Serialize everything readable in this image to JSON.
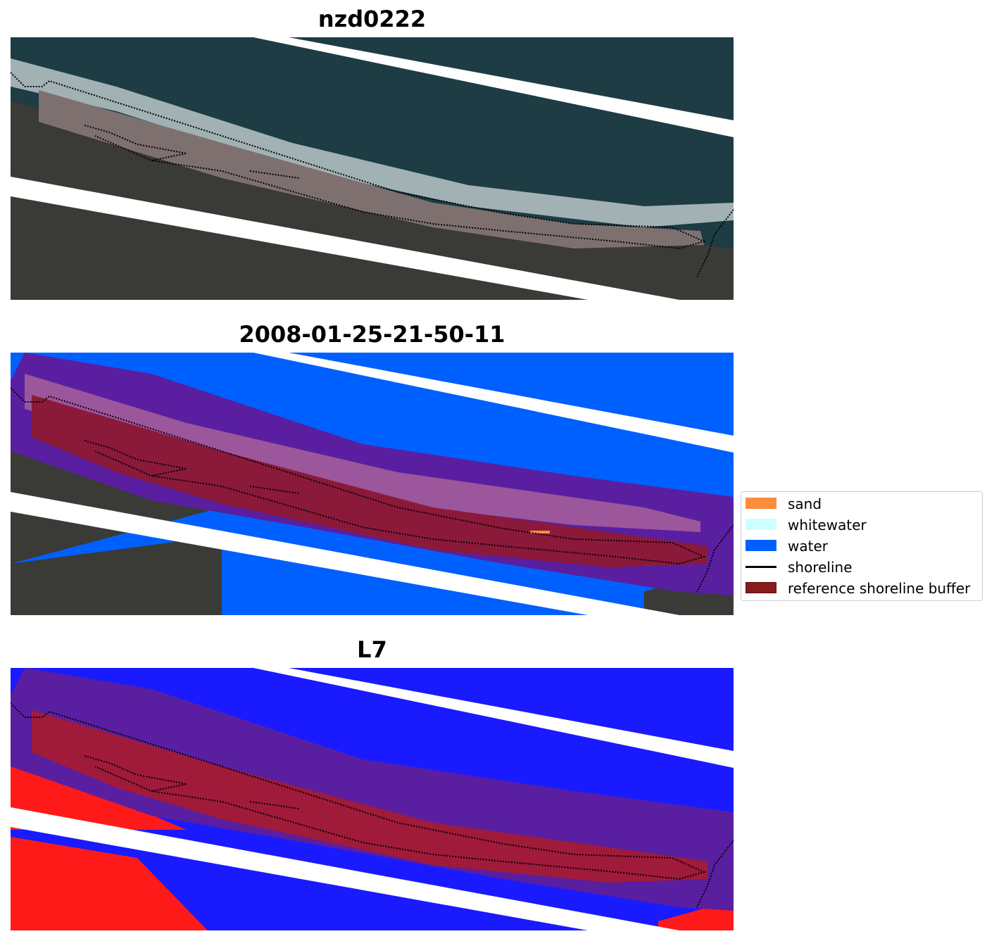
{
  "panels": [
    {
      "title": "nzd0222",
      "kind": "rgb"
    },
    {
      "title": "2008-01-25-21-50-11",
      "kind": "classified"
    },
    {
      "title": "L7",
      "kind": "index"
    }
  ],
  "legend": {
    "items": [
      {
        "label": "sand",
        "color": "#fb8d3d",
        "type": "patch"
      },
      {
        "label": "whitewater",
        "color": "#ccffff",
        "type": "patch"
      },
      {
        "label": "water",
        "color": "#0060ff",
        "type": "patch"
      },
      {
        "label": "shoreline",
        "color": "#000000",
        "type": "line"
      },
      {
        "label": "reference shoreline buffer",
        "color": "#8b1a1a",
        "type": "patch"
      }
    ]
  },
  "colors": {
    "ocean": "#1d3c44",
    "land": "#3a3a36",
    "beach": "#8a7a78",
    "surf": "#c8d2d4",
    "buffer_overlay": "#5a1fa0",
    "buffer_core": "#8b1a3a",
    "index_water": "#1a1aff",
    "index_land": "#ff1a1a"
  }
}
